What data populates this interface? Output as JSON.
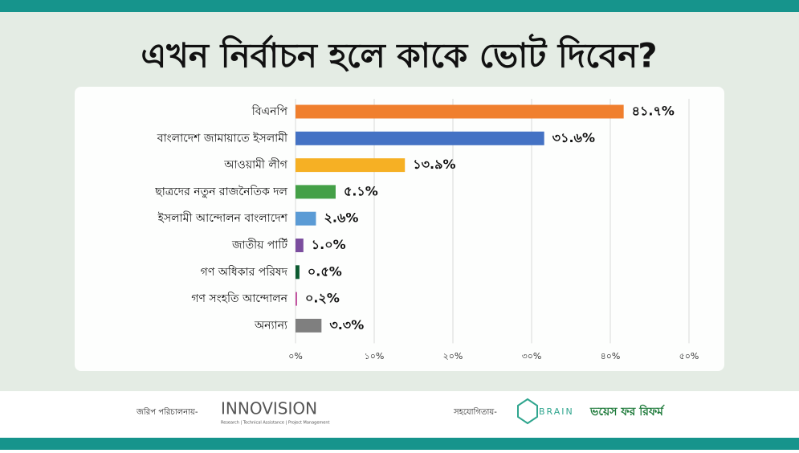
{
  "chart_data": {
    "type": "hbar",
    "title": "এখন নির্বাচন হলে কাকে ভোট দিবেন?",
    "categories": [
      "বিএনপি",
      "বাংলাদেশ জামায়াতে ইসলামী",
      "আওয়ামী লীগ",
      "ছাত্রদের নতুন রাজনৈতিক দল",
      "ইসলামী আন্দোলন বাংলাদেশ",
      "জাতীয় পার্টি",
      "গণ অধিকার পরিষদ",
      "গণ সংহতি আন্দোলন",
      "অন্যান্য"
    ],
    "values": [
      41.7,
      31.6,
      13.9,
      5.1,
      2.6,
      1.0,
      0.5,
      0.2,
      3.3
    ],
    "value_labels": [
      "৪১.৭%",
      "৩১.৬%",
      "১৩.৯%",
      "৫.১%",
      "২.৬%",
      "১.০%",
      "০.৫%",
      "০.২%",
      "৩.৩%"
    ],
    "colors": [
      "#f07f2e",
      "#4472c4",
      "#f6b024",
      "#44a047",
      "#5b9bd5",
      "#7b4e9e",
      "#0c5a30",
      "#c2519f",
      "#7f7f7f"
    ],
    "xlim": [
      0,
      50
    ],
    "xticks": [
      {
        "value": 0,
        "label": "০%"
      },
      {
        "value": 10,
        "label": "১০%"
      },
      {
        "value": 20,
        "label": "২০%"
      },
      {
        "value": 30,
        "label": "৩০%"
      },
      {
        "value": 40,
        "label": "৪০%"
      },
      {
        "value": 50,
        "label": "৫০%"
      }
    ],
    "grid": true
  },
  "footer": {
    "conducted_by": "জরিপ পরিচালনায়-",
    "innovision": "INNOVISION",
    "innovision_tagline": "Research | Technical Assistance | Project Management",
    "supported_by": "সহযোগিতায়-",
    "brain": "BRAIN",
    "voice_for_reform": "ভয়েস ফর রিফর্ম"
  }
}
